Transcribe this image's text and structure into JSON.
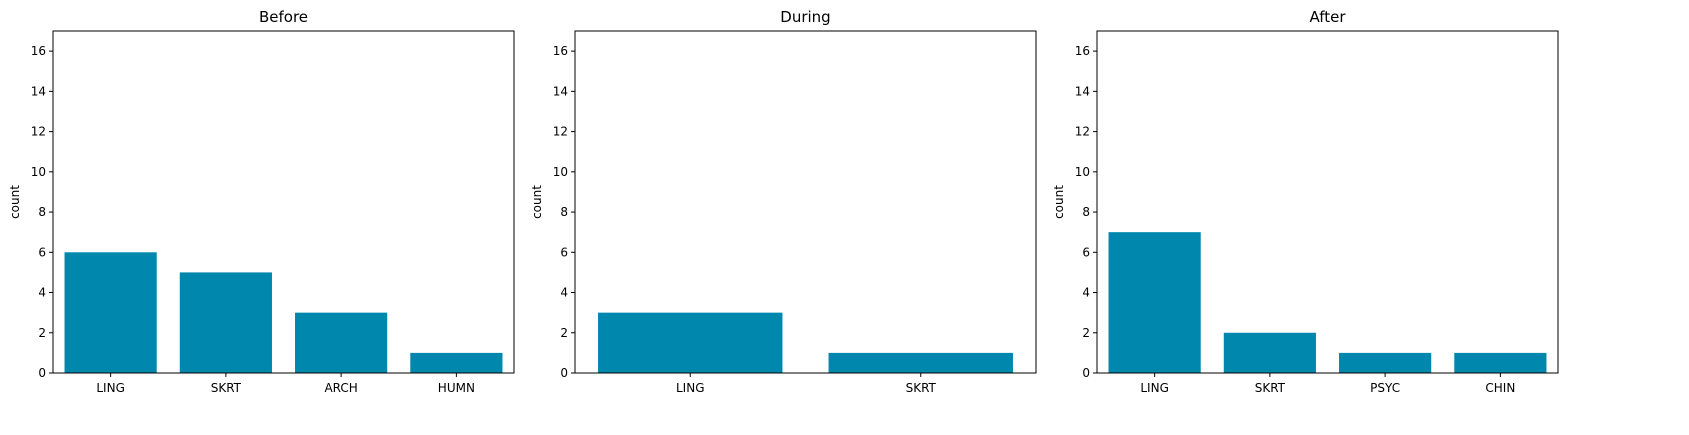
{
  "chart_data": [
    {
      "type": "bar",
      "title": "Before",
      "xlabel": "",
      "ylabel": "count",
      "ylim": [
        0,
        17
      ],
      "yticks": [
        0,
        2,
        4,
        6,
        8,
        10,
        12,
        14,
        16
      ],
      "categories": [
        "LING",
        "SKRT",
        "ARCH",
        "HUMN"
      ],
      "values": [
        6,
        5,
        3,
        1
      ],
      "color": "#0087ad",
      "grid": false
    },
    {
      "type": "bar",
      "title": "During",
      "xlabel": "",
      "ylabel": "count",
      "ylim": [
        0,
        17
      ],
      "yticks": [
        0,
        2,
        4,
        6,
        8,
        10,
        12,
        14,
        16
      ],
      "categories": [
        "LING",
        "SKRT"
      ],
      "values": [
        3,
        1
      ],
      "color": "#0087ad",
      "grid": false
    },
    {
      "type": "bar",
      "title": "After",
      "xlabel": "",
      "ylabel": "count",
      "ylim": [
        0,
        17
      ],
      "yticks": [
        0,
        2,
        4,
        6,
        8,
        10,
        12,
        14,
        16
      ],
      "categories": [
        "LING",
        "SKRT",
        "PSYC",
        "CHIN"
      ],
      "values": [
        7,
        2,
        1,
        1
      ],
      "color": "#0087ad",
      "grid": false
    }
  ]
}
